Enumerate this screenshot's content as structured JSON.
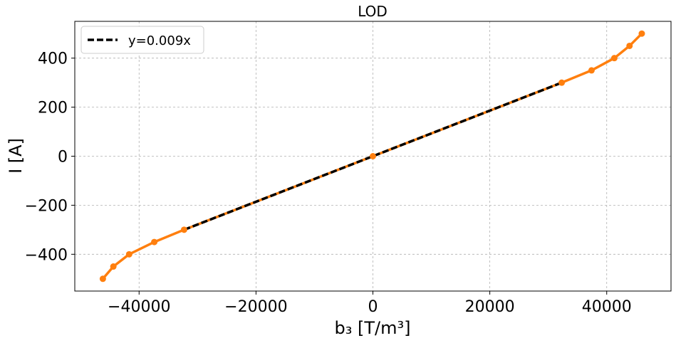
{
  "chart_data": {
    "type": "line",
    "title": "LOD",
    "xlabel": "b₃ [T/m³]",
    "ylabel": "I [A]",
    "xlim": [
      -51000,
      51000
    ],
    "ylim": [
      -550,
      550
    ],
    "xticks": [
      -40000,
      -20000,
      0,
      20000,
      40000
    ],
    "xtick_labels": [
      "−40000",
      "−20000",
      "0",
      "20000",
      "40000"
    ],
    "yticks": [
      -400,
      -200,
      0,
      200,
      400
    ],
    "ytick_labels": [
      "−400",
      "−200",
      "0",
      "200",
      "400"
    ],
    "grid": true,
    "legend_position": "top-left",
    "series": [
      {
        "color": "#ff7f0e",
        "style": "solid-with-markers",
        "x": [
          -46200,
          -44400,
          -41700,
          -37400,
          -32300,
          0,
          32300,
          37400,
          41300,
          43900,
          46000
        ],
        "y": [
          -500,
          -450,
          -400,
          -350,
          -300,
          0,
          300,
          350,
          400,
          450,
          500
        ]
      },
      {
        "name": "y=0.009x",
        "color": "#000000",
        "style": "dashed",
        "x": [
          -32300,
          32300
        ],
        "y": [
          -300,
          300
        ]
      }
    ]
  }
}
